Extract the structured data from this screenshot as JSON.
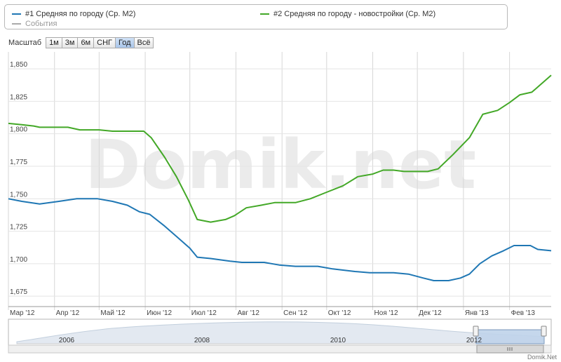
{
  "legend": {
    "items": [
      {
        "label": "#1 Средняя по городу (Ср. М2)",
        "color": "#1f77b4"
      },
      {
        "label": "#2 Средняя по городу - новостройки (Ср. М2)",
        "color": "#43a827"
      },
      {
        "label": "События",
        "color": "#aaaaaa"
      }
    ]
  },
  "zoom": {
    "label": "Масштаб",
    "buttons": [
      "1м",
      "3м",
      "6м",
      "СНГ",
      "Год",
      "Всё"
    ],
    "active": "Год"
  },
  "watermark": "Domik.net",
  "credit": "Domik.Net",
  "chart_data": {
    "type": "line",
    "ylim": [
      1667,
      1863
    ],
    "y_ticks": [
      "1,675",
      "1,700",
      "1,725",
      "1,750",
      "1,775",
      "1,800",
      "1,825",
      "1,850"
    ],
    "y_tick_values": [
      1675,
      1700,
      1725,
      1750,
      1775,
      1800,
      1825,
      1850
    ],
    "xlim": [
      "2012-03-01",
      "2013-03-01"
    ],
    "x_ticks": [
      {
        "label": "Мар '12",
        "date": "2012-03-01"
      },
      {
        "label": "Апр '12",
        "date": "2012-04-01"
      },
      {
        "label": "Май '12",
        "date": "2012-05-01"
      },
      {
        "label": "Июн '12",
        "date": "2012-06-01"
      },
      {
        "label": "Июл '12",
        "date": "2012-07-01"
      },
      {
        "label": "Авг '12",
        "date": "2012-08-01"
      },
      {
        "label": "Сен '12",
        "date": "2012-09-01"
      },
      {
        "label": "Окт '12",
        "date": "2012-10-01"
      },
      {
        "label": "Ноя '12",
        "date": "2012-11-01"
      },
      {
        "label": "Дек '12",
        "date": "2012-12-01"
      },
      {
        "label": "Янв '13",
        "date": "2013-01-01"
      },
      {
        "label": "Фев '13",
        "date": "2013-02-01"
      }
    ],
    "grid": true,
    "series": [
      {
        "name": "#1 Средняя по городу (Ср. М2)",
        "color": "#1f77b4",
        "points": [
          [
            "2012-03-01",
            1750
          ],
          [
            "2012-03-10",
            1748
          ],
          [
            "2012-03-22",
            1746
          ],
          [
            "2012-04-04",
            1748
          ],
          [
            "2012-04-16",
            1750
          ],
          [
            "2012-04-30",
            1750
          ],
          [
            "2012-05-10",
            1748
          ],
          [
            "2012-05-20",
            1745
          ],
          [
            "2012-05-28",
            1740
          ],
          [
            "2012-06-04",
            1738
          ],
          [
            "2012-06-14",
            1729
          ],
          [
            "2012-06-24",
            1719
          ],
          [
            "2012-07-01",
            1712
          ],
          [
            "2012-07-06",
            1705
          ],
          [
            "2012-07-15",
            1704
          ],
          [
            "2012-07-28",
            1702
          ],
          [
            "2012-08-05",
            1701
          ],
          [
            "2012-08-20",
            1701
          ],
          [
            "2012-08-30",
            1699
          ],
          [
            "2012-09-10",
            1698
          ],
          [
            "2012-09-25",
            1698
          ],
          [
            "2012-10-05",
            1696
          ],
          [
            "2012-10-20",
            1694
          ],
          [
            "2012-10-30",
            1693
          ],
          [
            "2012-11-15",
            1693
          ],
          [
            "2012-11-25",
            1692
          ],
          [
            "2012-12-05",
            1689
          ],
          [
            "2012-12-12",
            1687
          ],
          [
            "2012-12-22",
            1687
          ],
          [
            "2012-12-30",
            1689
          ],
          [
            "2013-01-05",
            1692
          ],
          [
            "2013-01-12",
            1700
          ],
          [
            "2013-01-20",
            1706
          ],
          [
            "2013-01-28",
            1710
          ],
          [
            "2013-02-04",
            1714
          ],
          [
            "2013-02-15",
            1714
          ],
          [
            "2013-02-20",
            1711
          ],
          [
            "2013-03-01",
            1710
          ]
        ]
      },
      {
        "name": "#2 Средняя по городу - новостройки (Ср. М2)",
        "color": "#43a827",
        "points": [
          [
            "2012-03-01",
            1808
          ],
          [
            "2012-03-10",
            1807
          ],
          [
            "2012-03-18",
            1806
          ],
          [
            "2012-03-22",
            1805
          ],
          [
            "2012-04-10",
            1805
          ],
          [
            "2012-04-18",
            1803
          ],
          [
            "2012-05-01",
            1803
          ],
          [
            "2012-05-10",
            1802
          ],
          [
            "2012-05-31",
            1802
          ],
          [
            "2012-06-05",
            1797
          ],
          [
            "2012-06-14",
            1782
          ],
          [
            "2012-06-22",
            1767
          ],
          [
            "2012-06-30",
            1749
          ],
          [
            "2012-07-06",
            1734
          ],
          [
            "2012-07-15",
            1732
          ],
          [
            "2012-07-25",
            1734
          ],
          [
            "2012-07-31",
            1737
          ],
          [
            "2012-08-08",
            1743
          ],
          [
            "2012-08-18",
            1745
          ],
          [
            "2012-08-27",
            1747
          ],
          [
            "2012-09-10",
            1747
          ],
          [
            "2012-09-20",
            1750
          ],
          [
            "2012-10-01",
            1755
          ],
          [
            "2012-10-12",
            1760
          ],
          [
            "2012-10-22",
            1767
          ],
          [
            "2012-11-01",
            1769
          ],
          [
            "2012-11-08",
            1772
          ],
          [
            "2012-11-15",
            1772
          ],
          [
            "2012-11-22",
            1771
          ],
          [
            "2012-12-08",
            1771
          ],
          [
            "2012-12-15",
            1773
          ],
          [
            "2012-12-25",
            1784
          ],
          [
            "2013-01-05",
            1797
          ],
          [
            "2013-01-14",
            1815
          ],
          [
            "2013-01-24",
            1818
          ],
          [
            "2013-02-01",
            1824
          ],
          [
            "2013-02-08",
            1830
          ],
          [
            "2013-02-16",
            1832
          ],
          [
            "2013-02-20",
            1836
          ],
          [
            "2013-03-01",
            1845
          ]
        ]
      }
    ],
    "navigator": {
      "x_ticks": [
        "2006",
        "2008",
        "2010",
        "2012"
      ]
    }
  }
}
